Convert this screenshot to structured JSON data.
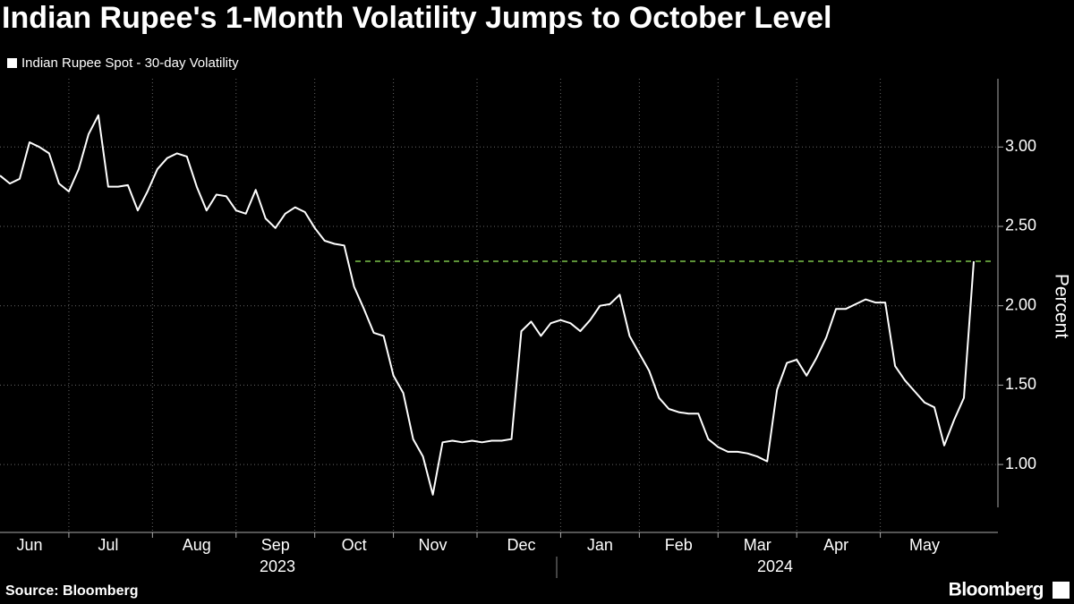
{
  "chart_data": {
    "type": "line",
    "title": "Indian Rupee's 1-Month Volatility Jumps to October Level",
    "y_label": "Percent",
    "source": "Source: Bloomberg",
    "brand": "Bloomberg",
    "years": [
      "2023",
      "2024"
    ],
    "categories": [
      null,
      null,
      null,
      "Jun",
      null,
      null,
      null,
      null,
      null,
      null,
      null,
      "Jul",
      null,
      null,
      null,
      null,
      null,
      null,
      null,
      null,
      "Aug",
      null,
      null,
      null,
      null,
      null,
      null,
      null,
      "Sep",
      null,
      null,
      null,
      null,
      null,
      null,
      null,
      "Oct",
      null,
      null,
      null,
      null,
      null,
      null,
      null,
      "Nov",
      null,
      null,
      null,
      null,
      null,
      null,
      null,
      null,
      "Dec",
      null,
      null,
      null,
      null,
      null,
      null,
      null,
      "Jan",
      null,
      null,
      null,
      null,
      null,
      null,
      null,
      "Feb",
      null,
      null,
      null,
      null,
      null,
      null,
      null,
      "Mar",
      null,
      null,
      null,
      null,
      null,
      null,
      null,
      "Apr",
      null,
      null,
      null,
      null,
      null,
      null,
      null,
      null,
      "May",
      null,
      null,
      null,
      null,
      null
    ],
    "series": [
      {
        "name": "Indian Rupee Spot - 30-day Volatility",
        "color": "#ffffff",
        "values": [
          2.82,
          2.77,
          2.8,
          3.03,
          3.0,
          2.96,
          2.77,
          2.72,
          2.86,
          3.08,
          3.2,
          2.75,
          2.75,
          2.76,
          2.6,
          2.72,
          2.86,
          2.93,
          2.96,
          2.94,
          2.75,
          2.6,
          2.7,
          2.69,
          2.6,
          2.58,
          2.73,
          2.55,
          2.49,
          2.58,
          2.62,
          2.59,
          2.49,
          2.41,
          2.39,
          2.38,
          2.12,
          1.98,
          1.83,
          1.81,
          1.56,
          1.45,
          1.16,
          1.05,
          0.81,
          1.14,
          1.15,
          1.14,
          1.15,
          1.14,
          1.15,
          1.15,
          1.16,
          1.84,
          1.9,
          1.81,
          1.89,
          1.91,
          1.89,
          1.84,
          1.91,
          2.0,
          2.01,
          2.07,
          1.81,
          1.7,
          1.59,
          1.42,
          1.35,
          1.33,
          1.32,
          1.32,
          1.16,
          1.11,
          1.08,
          1.08,
          1.07,
          1.05,
          1.02,
          1.47,
          1.64,
          1.66,
          1.56,
          1.67,
          1.8,
          1.98,
          1.98,
          2.01,
          2.04,
          2.02,
          2.02,
          1.62,
          1.53,
          1.46,
          1.39,
          1.36,
          1.12,
          1.28,
          1.42,
          2.28
        ]
      }
    ],
    "reference_line": {
      "value": 2.28,
      "color": "#7cc44a",
      "dashed": true
    },
    "ylim": [
      0.73,
      3.43
    ],
    "yticks": [
      {
        "value": 1,
        "label": "1.00"
      },
      {
        "value": 1.5,
        "label": "1.50"
      },
      {
        "value": 2,
        "label": "2.00"
      },
      {
        "value": 2.5,
        "label": "2.50"
      },
      {
        "value": 3,
        "label": "3.00"
      }
    ],
    "grid": true
  }
}
